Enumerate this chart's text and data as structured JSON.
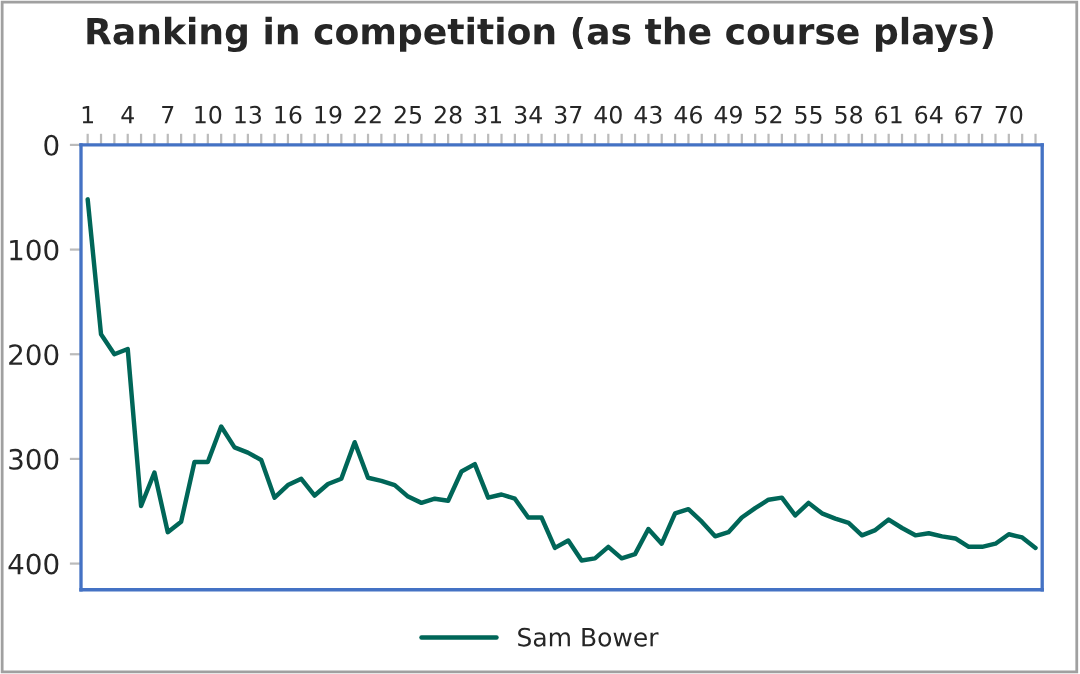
{
  "chart_data": {
    "type": "line",
    "title": "Ranking in competition (as the course plays)",
    "categories": [
      "1",
      null,
      null,
      "4",
      null,
      null,
      "7",
      null,
      null,
      "10",
      null,
      null,
      "13",
      null,
      null,
      "16",
      null,
      null,
      "19",
      null,
      null,
      "22",
      null,
      null,
      "25",
      null,
      null,
      "28",
      null,
      null,
      "31",
      null,
      null,
      "34",
      null,
      null,
      "37",
      null,
      null,
      "40",
      null,
      null,
      "43",
      null,
      null,
      "46",
      null,
      null,
      "49",
      null,
      null,
      "52",
      null,
      null,
      "55",
      null,
      null,
      "58",
      null,
      null,
      "61",
      null,
      null,
      "64",
      null,
      null,
      "67",
      null,
      null,
      "70",
      null,
      null
    ],
    "series": [
      {
        "name": "Sam Bower",
        "color": "#006658",
        "values": [
          52,
          181,
          200,
          195,
          345,
          313,
          370,
          360,
          303,
          303,
          269,
          289,
          294,
          301,
          337,
          325,
          319,
          335,
          324,
          319,
          284,
          318,
          321,
          325,
          336,
          342,
          338,
          340,
          312,
          305,
          337,
          334,
          338,
          356,
          356,
          385,
          378,
          397,
          395,
          384,
          395,
          391,
          367,
          381,
          352,
          348,
          360,
          374,
          370,
          356,
          347,
          339,
          337,
          354,
          342,
          352,
          357,
          361,
          373,
          368,
          358,
          366,
          373,
          371,
          374,
          376,
          384,
          384,
          381,
          372,
          375,
          385
        ]
      }
    ],
    "ylim": [
      425,
      0
    ],
    "yticks": [
      0,
      100,
      200,
      300,
      400
    ],
    "grid": false,
    "legend": "bottom",
    "marker": "none",
    "line_style": "solid"
  }
}
